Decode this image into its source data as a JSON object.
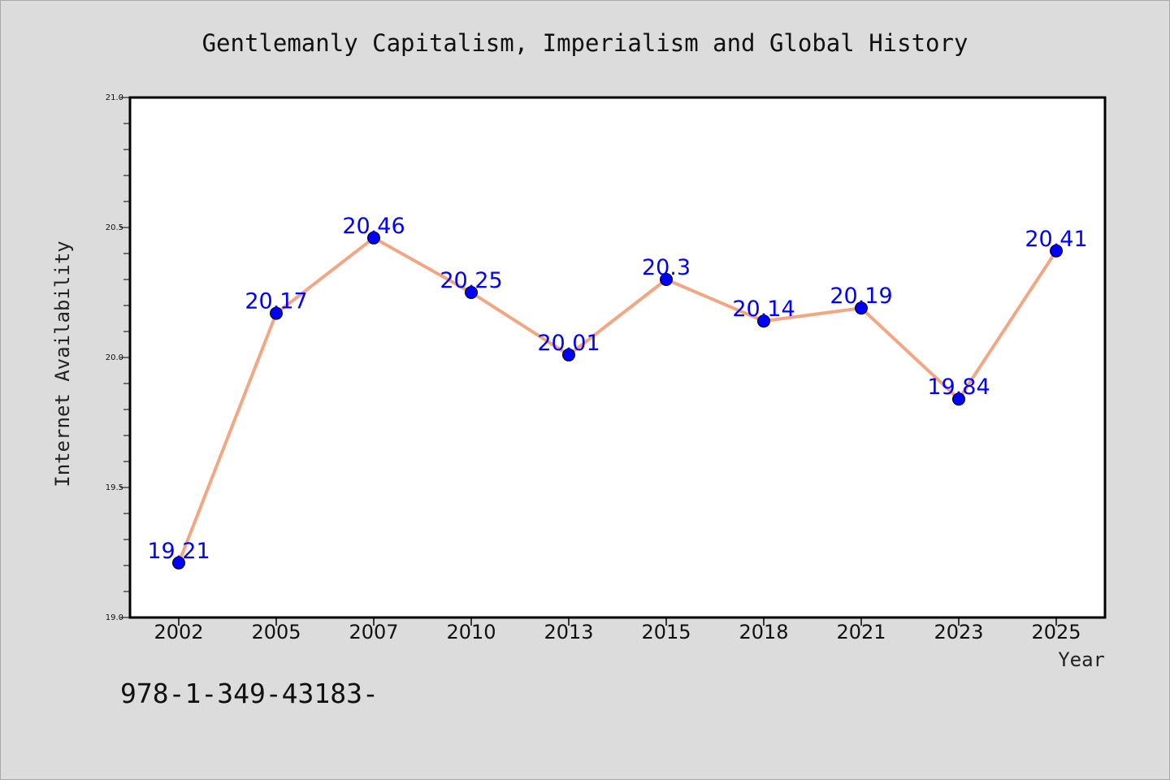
{
  "chart_data": {
    "type": "line",
    "title": "Gentlemanly Capitalism, Imperialism and Global History",
    "xlabel": "Year",
    "ylabel": "Internet Availability",
    "categories": [
      "2002",
      "2005",
      "2007",
      "2010",
      "2013",
      "2015",
      "2018",
      "2021",
      "2023",
      "2025"
    ],
    "series": [
      {
        "values": [
          19.21,
          20.17,
          20.46,
          20.25,
          20.01,
          20.3,
          20.14,
          20.19,
          19.84,
          20.41
        ],
        "data_labels": [
          "19.21",
          "20.17",
          "20.46",
          "20.25",
          "20.01",
          "20.3",
          "20.14",
          "20.19",
          "19.84",
          "20.41"
        ]
      }
    ],
    "ylim": [
      19.0,
      21.0
    ],
    "yticks": [
      "19.0",
      "19.5",
      "20.0",
      "20.5",
      "21.0"
    ],
    "grid": false,
    "line_color": "#f4a582",
    "marker_color": "#0000ff",
    "label_color": "#0000ff"
  },
  "footer_text": "978-1-349-43183-"
}
